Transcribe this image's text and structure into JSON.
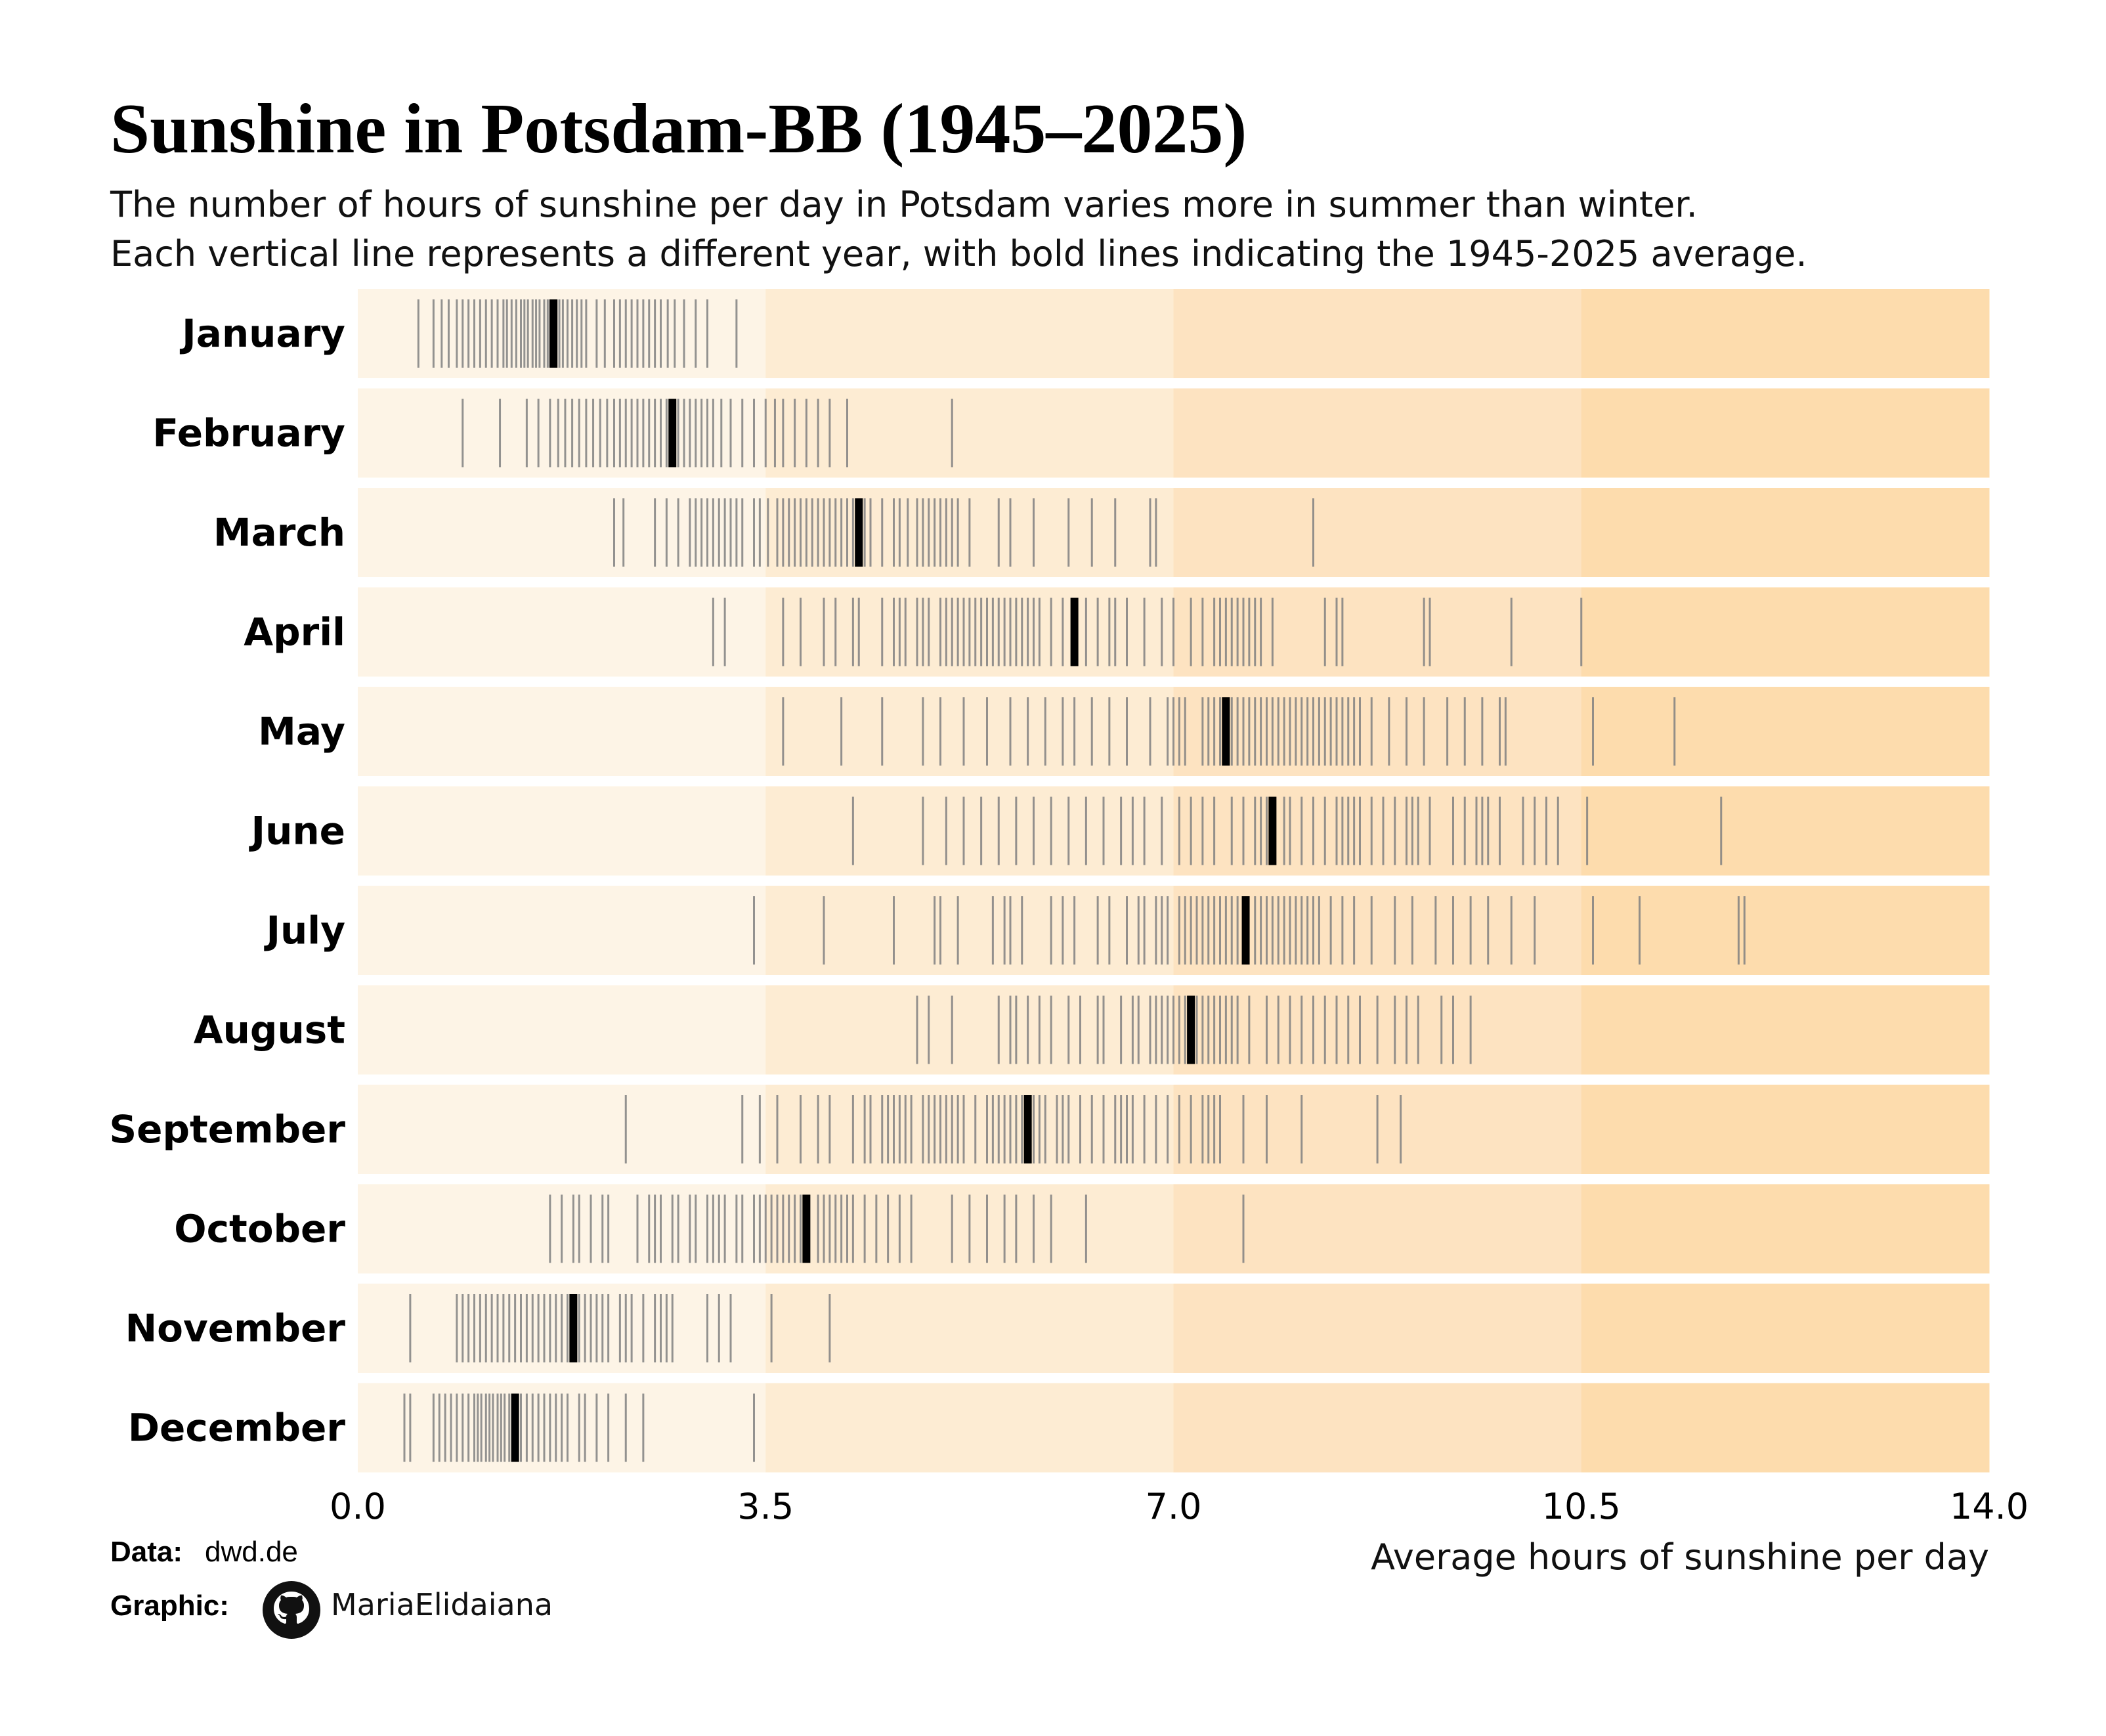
{
  "chart_data": {
    "type": "strip",
    "title": "Sunshine in Potsdam-BB (1945–2025)",
    "subtitle_lines": [
      "The number of hours of sunshine per day in Potsdam varies more in summer than winter.",
      "Each vertical line represents a different year, with bold lines indicating the 1945-2025 average."
    ],
    "xlabel": "Average hours of sunshine per day",
    "xlim": [
      0,
      14
    ],
    "x_ticks": [
      0,
      3.5,
      7,
      10.5,
      14
    ],
    "x_tick_labels": [
      "0.0",
      "3.5",
      "7.0",
      "10.5",
      "14.0"
    ],
    "band_edges": [
      0,
      3.5,
      7,
      10.5,
      14
    ],
    "band_colors": [
      "#fdf4e6",
      "#fdecd3",
      "#fde3c1",
      "#fddcad"
    ],
    "year_line_color": "#808080",
    "average_line_color": "#000000",
    "grid": false,
    "legend": "none",
    "series": [
      {
        "name": "January",
        "average": 1.68,
        "values": [
          0.52,
          0.65,
          0.72,
          0.78,
          0.85,
          0.9,
          0.95,
          1.0,
          1.05,
          1.1,
          1.15,
          1.2,
          1.25,
          1.28,
          1.32,
          1.36,
          1.4,
          1.43,
          1.46,
          1.5,
          1.53,
          1.56,
          1.6,
          1.63,
          1.65,
          1.7,
          1.73,
          1.76,
          1.8,
          1.84,
          1.88,
          1.92,
          1.96,
          2.05,
          2.12,
          2.2,
          2.25,
          2.3,
          2.35,
          2.4,
          2.45,
          2.5,
          2.55,
          2.6,
          2.66,
          2.72,
          2.8,
          2.9,
          3.0,
          3.25
        ]
      },
      {
        "name": "February",
        "average": 2.7,
        "values": [
          0.9,
          1.22,
          1.45,
          1.55,
          1.65,
          1.72,
          1.78,
          1.84,
          1.9,
          1.96,
          2.02,
          2.08,
          2.14,
          2.2,
          2.25,
          2.3,
          2.35,
          2.4,
          2.45,
          2.5,
          2.55,
          2.6,
          2.65,
          2.75,
          2.8,
          2.85,
          2.9,
          2.95,
          3.0,
          3.05,
          3.12,
          3.2,
          3.3,
          3.4,
          3.5,
          3.58,
          3.65,
          3.75,
          3.85,
          3.95,
          4.05,
          4.2,
          5.1
        ]
      },
      {
        "name": "March",
        "average": 4.3,
        "values": [
          2.2,
          2.28,
          2.55,
          2.65,
          2.75,
          2.85,
          2.9,
          2.95,
          3.0,
          3.05,
          3.1,
          3.15,
          3.2,
          3.25,
          3.3,
          3.4,
          3.45,
          3.52,
          3.6,
          3.65,
          3.7,
          3.75,
          3.8,
          3.85,
          3.9,
          3.95,
          4.0,
          4.05,
          4.1,
          4.15,
          4.2,
          4.25,
          4.35,
          4.4,
          4.5,
          4.6,
          4.65,
          4.72,
          4.8,
          4.85,
          4.9,
          4.95,
          5.0,
          5.05,
          5.1,
          5.15,
          5.25,
          5.5,
          5.6,
          5.8,
          6.1,
          6.3,
          6.5,
          6.8,
          6.85,
          8.2
        ]
      },
      {
        "name": "April",
        "average": 6.15,
        "values": [
          3.05,
          3.15,
          3.65,
          3.8,
          4.0,
          4.1,
          4.25,
          4.3,
          4.5,
          4.6,
          4.65,
          4.7,
          4.8,
          4.85,
          4.9,
          5.0,
          5.05,
          5.1,
          5.15,
          5.2,
          5.25,
          5.3,
          5.35,
          5.4,
          5.45,
          5.5,
          5.55,
          5.6,
          5.65,
          5.7,
          5.75,
          5.8,
          5.85,
          5.95,
          6.05,
          6.25,
          6.35,
          6.45,
          6.5,
          6.6,
          6.75,
          6.9,
          7.0,
          7.15,
          7.25,
          7.35,
          7.4,
          7.45,
          7.5,
          7.55,
          7.6,
          7.65,
          7.7,
          7.75,
          7.85,
          8.3,
          8.4,
          8.45,
          9.15,
          9.2,
          9.9,
          10.5
        ]
      },
      {
        "name": "May",
        "average": 7.45,
        "values": [
          3.65,
          4.15,
          4.5,
          4.85,
          5.0,
          5.2,
          5.4,
          5.6,
          5.75,
          5.9,
          6.05,
          6.15,
          6.3,
          6.45,
          6.6,
          6.8,
          6.95,
          7.0,
          7.05,
          7.1,
          7.25,
          7.3,
          7.35,
          7.4,
          7.5,
          7.55,
          7.6,
          7.65,
          7.7,
          7.75,
          7.8,
          7.85,
          7.9,
          7.95,
          8.0,
          8.05,
          8.1,
          8.15,
          8.2,
          8.25,
          8.3,
          8.35,
          8.4,
          8.45,
          8.5,
          8.55,
          8.6,
          8.7,
          8.85,
          9.0,
          9.15,
          9.35,
          9.5,
          9.65,
          9.8,
          9.85,
          10.6,
          11.3
        ]
      },
      {
        "name": "June",
        "average": 7.85,
        "values": [
          4.25,
          4.85,
          5.05,
          5.2,
          5.35,
          5.5,
          5.65,
          5.8,
          5.95,
          6.1,
          6.25,
          6.4,
          6.55,
          6.65,
          6.75,
          6.9,
          7.05,
          7.15,
          7.25,
          7.35,
          7.5,
          7.6,
          7.7,
          7.75,
          7.8,
          7.95,
          8.0,
          8.1,
          8.2,
          8.3,
          8.4,
          8.45,
          8.5,
          8.55,
          8.6,
          8.7,
          8.8,
          8.9,
          9.0,
          9.05,
          9.1,
          9.2,
          9.4,
          9.5,
          9.6,
          9.65,
          9.7,
          9.8,
          10.0,
          10.1,
          10.2,
          10.3,
          10.55,
          11.7
        ]
      },
      {
        "name": "July",
        "average": 7.62,
        "values": [
          3.4,
          4.0,
          4.6,
          4.95,
          5.0,
          5.15,
          5.45,
          5.55,
          5.6,
          5.7,
          5.95,
          6.05,
          6.15,
          6.35,
          6.45,
          6.6,
          6.7,
          6.75,
          6.85,
          6.9,
          6.95,
          7.05,
          7.1,
          7.15,
          7.2,
          7.25,
          7.3,
          7.35,
          7.4,
          7.45,
          7.5,
          7.55,
          7.7,
          7.75,
          7.8,
          7.85,
          7.9,
          7.95,
          8.0,
          8.05,
          8.1,
          8.15,
          8.2,
          8.25,
          8.35,
          8.45,
          8.55,
          8.7,
          8.9,
          9.05,
          9.25,
          9.4,
          9.55,
          9.7,
          9.9,
          10.1,
          10.6,
          11.0,
          11.85,
          11.9
        ]
      },
      {
        "name": "August",
        "average": 7.15,
        "values": [
          4.8,
          4.9,
          5.1,
          5.5,
          5.6,
          5.65,
          5.75,
          5.85,
          5.95,
          6.1,
          6.2,
          6.35,
          6.4,
          6.55,
          6.65,
          6.7,
          6.8,
          6.85,
          6.9,
          6.95,
          7.0,
          7.05,
          7.1,
          7.2,
          7.25,
          7.3,
          7.35,
          7.4,
          7.45,
          7.5,
          7.55,
          7.65,
          7.8,
          7.9,
          8.0,
          8.1,
          8.2,
          8.3,
          8.4,
          8.5,
          8.6,
          8.75,
          8.9,
          9.0,
          9.1,
          9.3,
          9.4,
          9.55
        ]
      },
      {
        "name": "September",
        "average": 5.75,
        "values": [
          2.3,
          3.3,
          3.45,
          3.6,
          3.8,
          3.95,
          4.05,
          4.25,
          4.35,
          4.4,
          4.5,
          4.55,
          4.6,
          4.65,
          4.7,
          4.75,
          4.85,
          4.9,
          4.95,
          5.0,
          5.05,
          5.1,
          5.15,
          5.2,
          5.3,
          5.4,
          5.45,
          5.5,
          5.55,
          5.6,
          5.65,
          5.7,
          5.8,
          5.85,
          5.9,
          6.0,
          6.05,
          6.1,
          6.2,
          6.3,
          6.4,
          6.5,
          6.55,
          6.6,
          6.65,
          6.75,
          6.85,
          6.95,
          7.05,
          7.15,
          7.25,
          7.3,
          7.35,
          7.4,
          7.6,
          7.8,
          8.1,
          8.75,
          8.95
        ]
      },
      {
        "name": "October",
        "average": 3.85,
        "values": [
          1.65,
          1.75,
          1.85,
          1.9,
          2.0,
          2.1,
          2.15,
          2.4,
          2.5,
          2.55,
          2.6,
          2.7,
          2.75,
          2.85,
          2.9,
          3.0,
          3.05,
          3.1,
          3.15,
          3.25,
          3.3,
          3.4,
          3.45,
          3.5,
          3.55,
          3.6,
          3.65,
          3.7,
          3.75,
          3.8,
          3.95,
          4.0,
          4.05,
          4.1,
          4.15,
          4.2,
          4.25,
          4.35,
          4.45,
          4.55,
          4.65,
          4.75,
          5.1,
          5.25,
          5.4,
          5.55,
          5.65,
          5.8,
          5.95,
          6.25,
          7.6
        ]
      },
      {
        "name": "November",
        "average": 1.85,
        "values": [
          0.45,
          0.85,
          0.9,
          0.95,
          1.0,
          1.05,
          1.1,
          1.15,
          1.2,
          1.25,
          1.3,
          1.35,
          1.4,
          1.45,
          1.5,
          1.55,
          1.6,
          1.65,
          1.7,
          1.75,
          1.8,
          1.9,
          1.95,
          2.0,
          2.05,
          2.1,
          2.15,
          2.25,
          2.3,
          2.35,
          2.45,
          2.55,
          2.6,
          2.65,
          2.7,
          3.0,
          3.1,
          3.2,
          3.55,
          4.05
        ]
      },
      {
        "name": "December",
        "average": 1.35,
        "values": [
          0.4,
          0.45,
          0.65,
          0.7,
          0.75,
          0.8,
          0.85,
          0.9,
          0.95,
          1.0,
          1.03,
          1.06,
          1.1,
          1.13,
          1.16,
          1.2,
          1.23,
          1.26,
          1.3,
          1.33,
          1.4,
          1.45,
          1.5,
          1.55,
          1.6,
          1.65,
          1.7,
          1.75,
          1.8,
          1.9,
          1.95,
          2.05,
          2.15,
          2.3,
          2.45,
          3.4
        ]
      }
    ]
  },
  "credits": {
    "data_label": "Data:",
    "data_value": "dwd.de",
    "graphic_label": "Graphic:",
    "graphic_icon": "github-icon",
    "graphic_handle": "MariaElidaiana"
  }
}
